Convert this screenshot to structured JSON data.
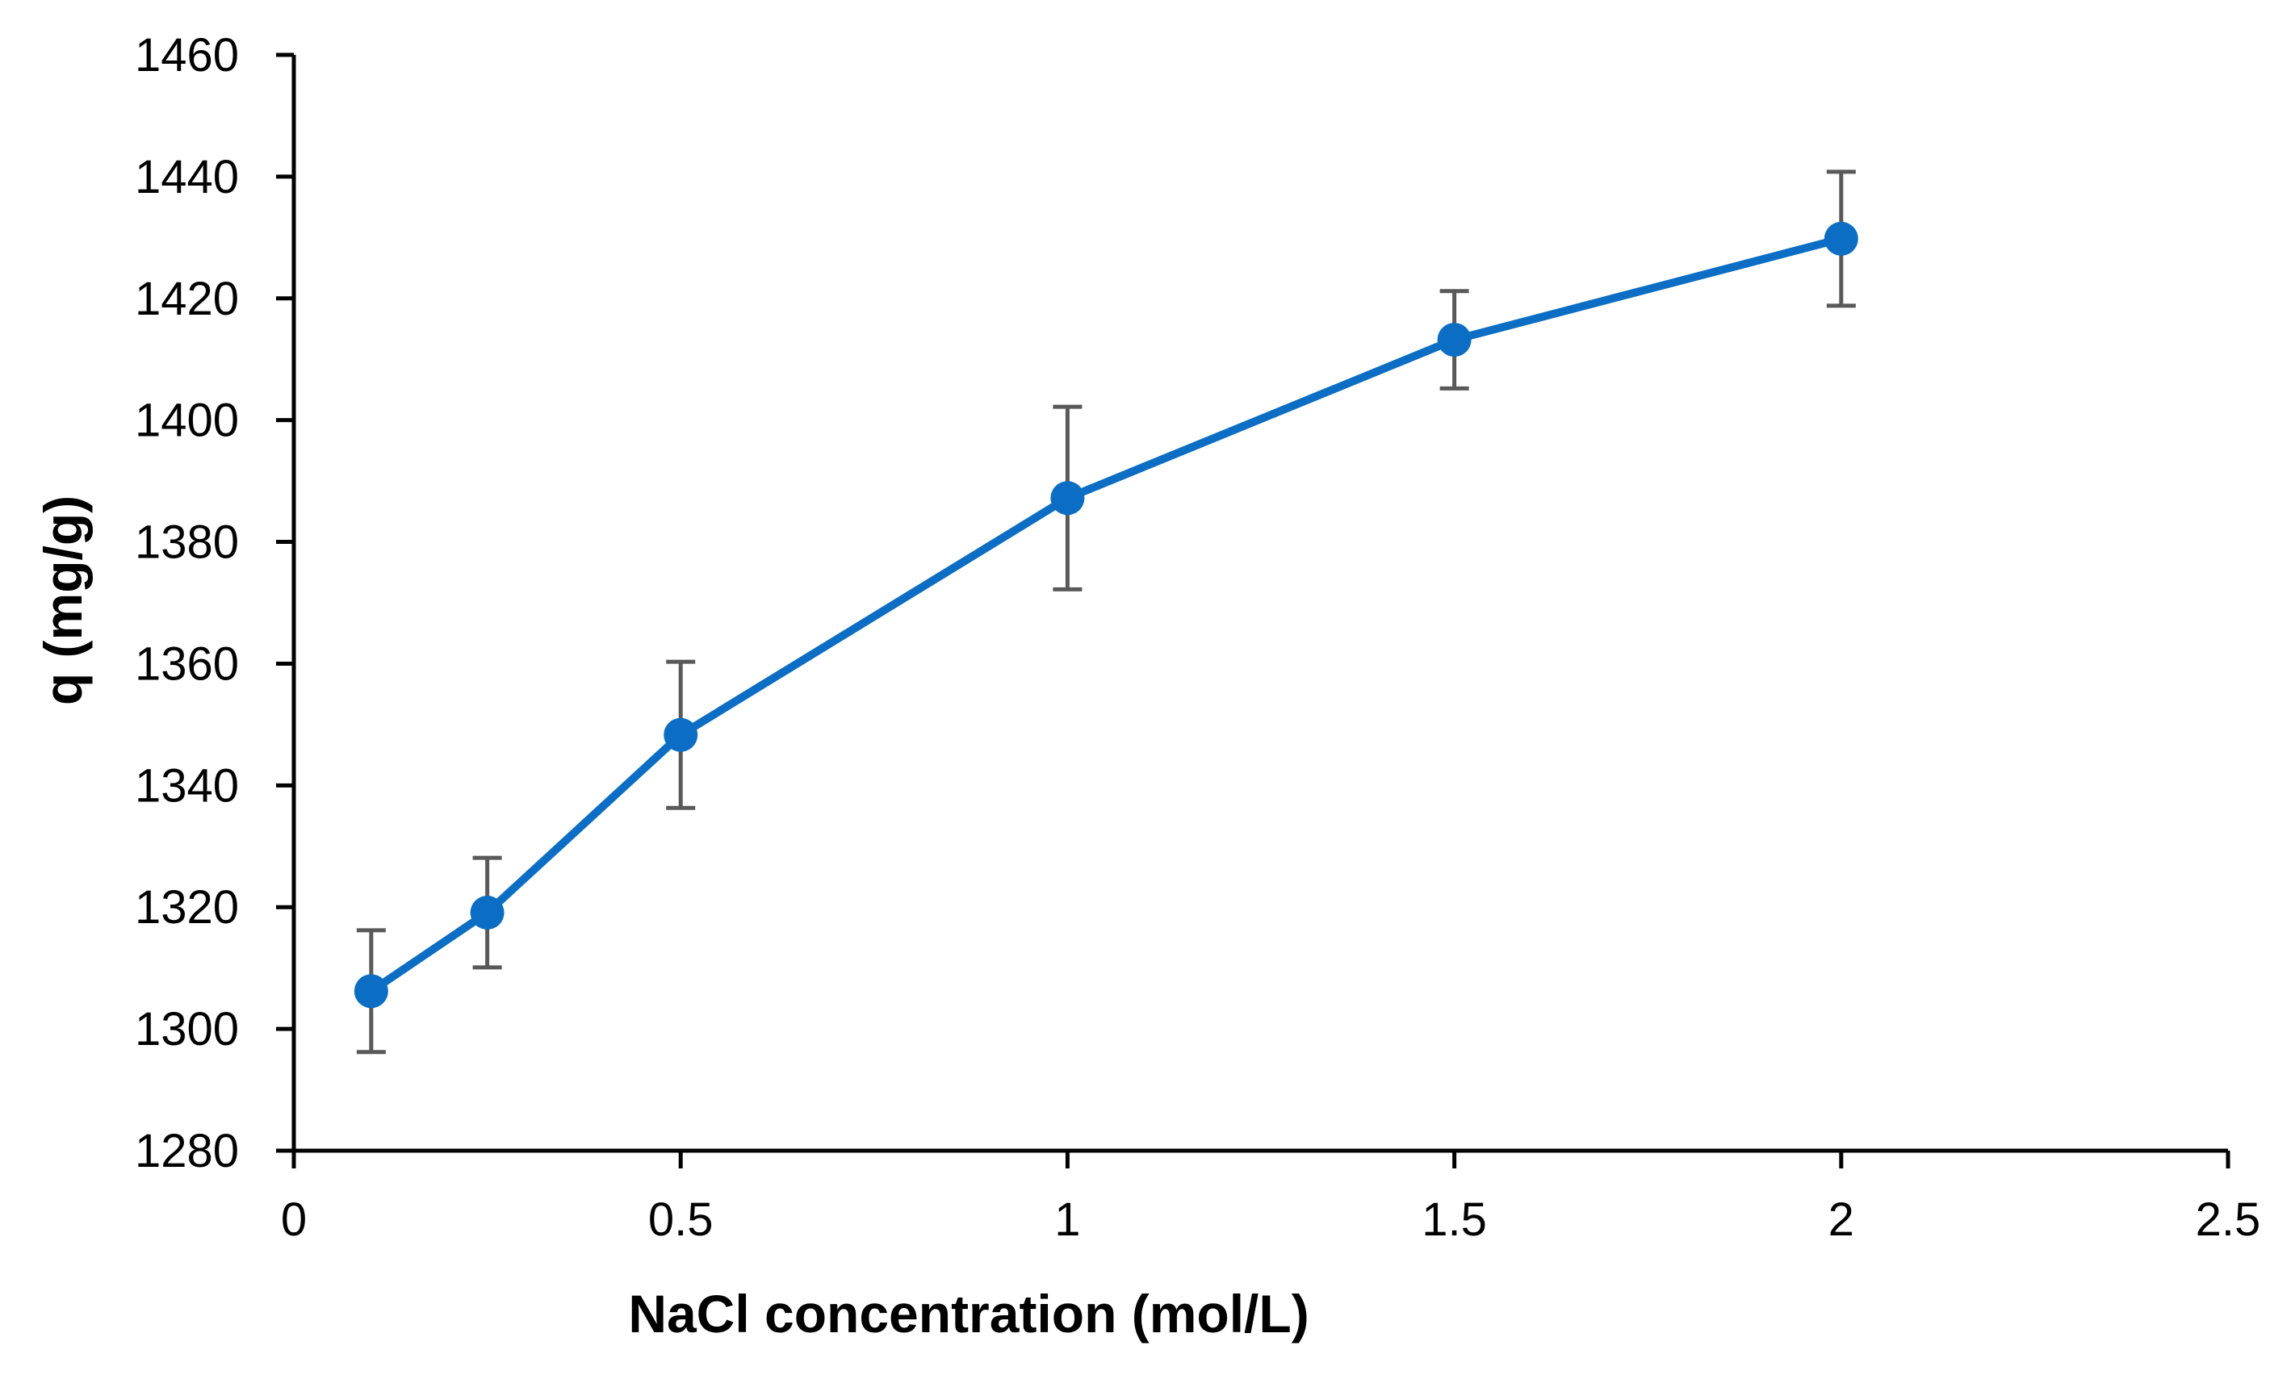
{
  "chart_data": {
    "type": "line",
    "title": "",
    "xlabel": "NaCl concentration (mol/L)",
    "ylabel": "q (mg/g)",
    "xlim": [
      0,
      2.5
    ],
    "ylim": [
      1280,
      1460
    ],
    "x_ticks": [
      0,
      0.5,
      1,
      1.5,
      2,
      2.5
    ],
    "x_tick_labels": [
      "0",
      "0.5",
      "1",
      "1.5",
      "2",
      "2.5"
    ],
    "y_ticks": [
      1280,
      1300,
      1320,
      1340,
      1360,
      1380,
      1400,
      1420,
      1440,
      1460
    ],
    "y_tick_labels": [
      "1280",
      "1300",
      "1320",
      "1340",
      "1360",
      "1380",
      "1400",
      "1420",
      "1440",
      "1460"
    ],
    "grid": false,
    "series": [
      {
        "name": "q",
        "color": "#0b6ec4",
        "x": [
          0.1,
          0.25,
          0.5,
          1,
          1.5,
          2
        ],
        "values": [
          1306.2,
          1319.1,
          1348.3,
          1387.2,
          1413.2,
          1429.8
        ],
        "error": [
          10,
          9,
          12,
          15,
          8,
          11
        ]
      }
    ],
    "error_bar_color": "#595959"
  }
}
